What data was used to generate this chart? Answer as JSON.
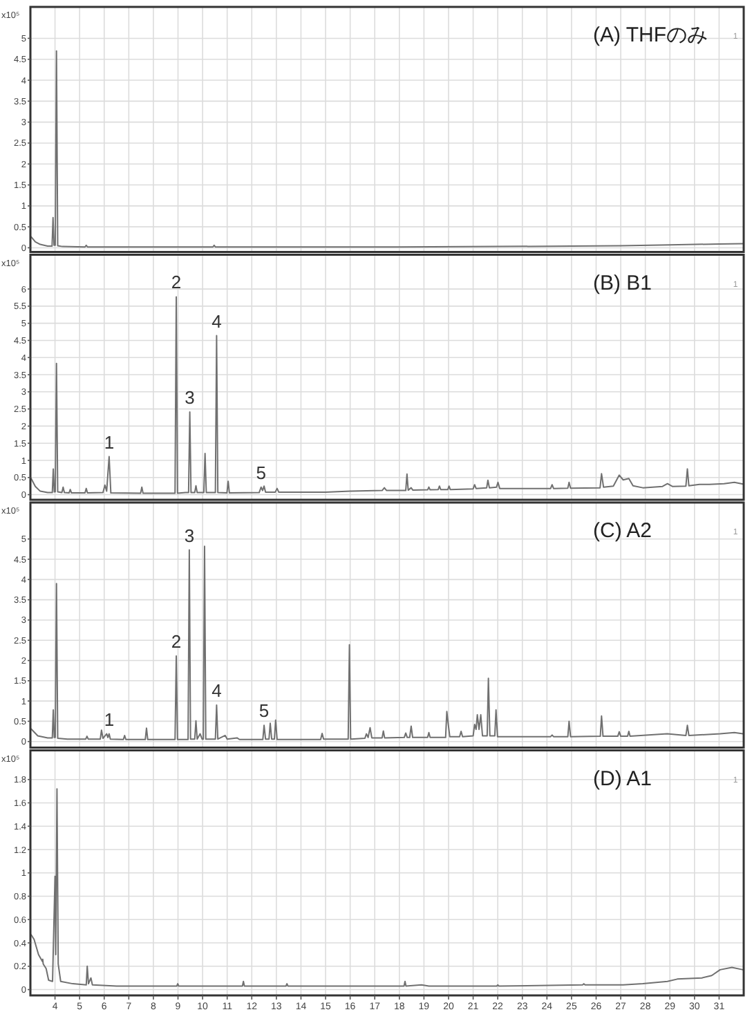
{
  "chart_data": [
    {
      "type": "line",
      "title": "(A) THFのみ",
      "ylabel": "x10⁵",
      "xlim": [
        3,
        32
      ],
      "ylim": [
        -0.1,
        5.75
      ],
      "xticks": [
        4,
        5,
        6,
        7,
        8,
        9,
        10,
        11,
        12,
        13,
        14,
        15,
        16,
        17,
        18,
        19,
        20,
        21,
        22,
        23,
        24,
        25,
        26,
        27,
        28,
        29,
        30,
        31
      ],
      "yticks": [
        0,
        0.5,
        1,
        1.5,
        2,
        2.5,
        3,
        3.5,
        4,
        4.5,
        5
      ],
      "grid": true,
      "tick_labels": "y",
      "annotations": [
        "1"
      ],
      "series": [
        {
          "color": "#707070",
          "x": [
            3.03,
            3.2,
            3.4,
            3.7,
            3.88,
            3.92,
            3.96,
            4.01,
            4.06,
            4.11,
            4.3,
            5.22,
            5.27,
            5.32,
            8,
            10.42,
            10.47,
            10.52,
            14,
            18,
            22,
            25,
            27,
            29,
            31,
            31.97
          ],
          "values": [
            0.26,
            0.14,
            0.08,
            0.04,
            0.04,
            0.72,
            0.06,
            0.06,
            4.7,
            0.05,
            0.03,
            0.02,
            0.06,
            0.02,
            0.02,
            0.02,
            0.06,
            0.02,
            0.02,
            0.02,
            0.03,
            0.04,
            0.05,
            0.07,
            0.09,
            0.1
          ]
        }
      ]
    },
    {
      "type": "line",
      "title": "(B) B1",
      "ylabel": "x10⁵",
      "xlim": [
        3,
        32
      ],
      "ylim": [
        -0.15,
        7
      ],
      "xticks": [
        4,
        5,
        6,
        7,
        8,
        9,
        10,
        11,
        12,
        13,
        14,
        15,
        16,
        17,
        18,
        19,
        20,
        21,
        22,
        23,
        24,
        25,
        26,
        27,
        28,
        29,
        30,
        31
      ],
      "yticks": [
        0,
        0.5,
        1,
        1.5,
        2,
        2.5,
        3,
        3.5,
        4,
        4.5,
        5,
        5.5,
        6
      ],
      "grid": true,
      "tick_labels": "y",
      "annotations": [
        {
          "text": "1",
          "x": 6.2,
          "y": 1.11
        },
        {
          "text": "2",
          "x": 8.93,
          "y": 5.77
        },
        {
          "text": "3",
          "x": 9.48,
          "y": 2.41
        },
        {
          "text": "4",
          "x": 10.57,
          "y": 4.64
        },
        {
          "text": "5",
          "x": 12.38,
          "y": 0.22
        },
        "1"
      ],
      "series": [
        {
          "color": "#707070",
          "x": [
            3.03,
            3.2,
            3.4,
            3.7,
            3.89,
            3.93,
            3.97,
            4.01,
            4.06,
            4.11,
            4.28,
            4.33,
            4.38,
            4.57,
            4.62,
            4.67,
            5.22,
            5.27,
            5.32,
            5.95,
            6.03,
            6.1,
            6.2,
            6.27,
            7.48,
            7.53,
            7.58,
            8.88,
            8.93,
            8.98,
            9.3,
            9.43,
            9.48,
            9.53,
            9.68,
            9.73,
            9.78,
            10.05,
            10.1,
            10.15,
            10.52,
            10.57,
            10.62,
            10.99,
            11.04,
            11.09,
            12.3,
            12.38,
            12.44,
            12.5,
            12.56,
            12.95,
            13.03,
            13.1,
            15,
            16,
            17.3,
            17.39,
            17.48,
            18.26,
            18.31,
            18.36,
            18.48,
            18.55,
            19.15,
            19.2,
            19.25,
            19.58,
            19.63,
            19.68,
            19.97,
            20.02,
            20.07,
            21,
            21.06,
            21.12,
            21.55,
            21.6,
            21.66,
            21.95,
            22.01,
            22.08,
            24.15,
            24.21,
            24.27,
            24.85,
            24.9,
            24.96,
            26.16,
            26.22,
            26.3,
            26.7,
            26.94,
            27.1,
            27.33,
            27.5,
            27.9,
            28.7,
            28.9,
            29.1,
            29.65,
            29.71,
            29.77,
            30.2,
            30.6,
            31.2,
            31.62,
            31.97
          ],
          "values": [
            0.47,
            0.24,
            0.1,
            0.06,
            0.06,
            0.75,
            0.08,
            0.08,
            3.83,
            0.08,
            0.06,
            0.22,
            0.06,
            0.05,
            0.15,
            0.05,
            0.05,
            0.18,
            0.05,
            0.06,
            0.28,
            0.1,
            1.11,
            0.05,
            0.04,
            0.22,
            0.04,
            0.04,
            5.77,
            0.04,
            0.06,
            0.06,
            2.41,
            0.06,
            0.06,
            0.26,
            0.06,
            0.06,
            1.2,
            0.06,
            0.06,
            4.64,
            0.06,
            0.05,
            0.39,
            0.05,
            0.06,
            0.22,
            0.12,
            0.25,
            0.07,
            0.07,
            0.18,
            0.07,
            0.07,
            0.1,
            0.12,
            0.2,
            0.12,
            0.12,
            0.6,
            0.13,
            0.2,
            0.13,
            0.14,
            0.22,
            0.14,
            0.15,
            0.25,
            0.15,
            0.15,
            0.25,
            0.15,
            0.17,
            0.29,
            0.18,
            0.2,
            0.42,
            0.2,
            0.22,
            0.36,
            0.18,
            0.18,
            0.29,
            0.18,
            0.19,
            0.36,
            0.19,
            0.2,
            0.61,
            0.22,
            0.25,
            0.57,
            0.43,
            0.47,
            0.26,
            0.2,
            0.24,
            0.32,
            0.24,
            0.25,
            0.75,
            0.26,
            0.3,
            0.3,
            0.32,
            0.36,
            0.31
          ]
        }
      ]
    },
    {
      "type": "line",
      "title": "(C) A2",
      "ylabel": "x10⁵",
      "xlim": [
        3,
        32
      ],
      "ylim": [
        -0.15,
        5.9
      ],
      "xticks": [
        4,
        5,
        6,
        7,
        8,
        9,
        10,
        11,
        12,
        13,
        14,
        15,
        16,
        17,
        18,
        19,
        20,
        21,
        22,
        23,
        24,
        25,
        26,
        27,
        28,
        29,
        30,
        31
      ],
      "yticks": [
        0,
        0.5,
        1,
        1.5,
        2,
        2.5,
        3,
        3.5,
        4,
        4.5,
        5
      ],
      "grid": true,
      "tick_labels": "y",
      "annotations": [
        {
          "text": "1",
          "x": 6.2,
          "y": 0.19
        },
        {
          "text": "2",
          "x": 8.93,
          "y": 2.11
        },
        {
          "text": "3",
          "x": 9.46,
          "y": 4.73
        },
        {
          "text": "4",
          "x": 10.57,
          "y": 0.9
        },
        {
          "text": "5",
          "x": 12.5,
          "y": 0.4
        },
        "1"
      ],
      "series": [
        {
          "color": "#707070",
          "x": [
            3.03,
            3.3,
            3.7,
            3.89,
            3.93,
            3.97,
            4.01,
            4.06,
            4.11,
            4.5,
            5.25,
            5.3,
            5.35,
            5.84,
            5.89,
            5.95,
            6.1,
            6.15,
            6.2,
            6.25,
            6.78,
            6.83,
            6.88,
            7.67,
            7.72,
            7.77,
            8.88,
            8.93,
            8.98,
            9.41,
            9.46,
            9.51,
            9.68,
            9.73,
            9.78,
            9.9,
            9.98,
            10.03,
            10.08,
            10.13,
            10.52,
            10.57,
            10.62,
            10.92,
            11.0,
            11.4,
            11.5,
            12.45,
            12.5,
            12.56,
            12.7,
            12.75,
            12.81,
            12.92,
            12.97,
            13.03,
            14.8,
            14.86,
            14.92,
            15.92,
            15.97,
            16.02,
            16.6,
            16.66,
            16.73,
            16.81,
            16.88,
            17.3,
            17.35,
            17.4,
            18.2,
            18.26,
            18.32,
            18.42,
            18.48,
            18.54,
            19.15,
            19.2,
            19.25,
            19.88,
            19.93,
            19.99,
            20.05,
            20.45,
            20.51,
            20.57,
            21.0,
            21.06,
            21.12,
            21.17,
            21.24,
            21.31,
            21.38,
            21.57,
            21.62,
            21.68,
            21.88,
            21.93,
            21.99,
            24.15,
            24.21,
            24.27,
            24.85,
            24.9,
            24.96,
            26.17,
            26.22,
            26.28,
            26.88,
            26.94,
            27.0,
            27.28,
            27.33,
            27.38,
            28.89,
            29.65,
            29.71,
            29.77,
            31.04,
            31.62,
            31.97
          ],
          "values": [
            0.31,
            0.14,
            0.09,
            0.09,
            0.78,
            0.1,
            0.1,
            3.9,
            0.08,
            0.06,
            0.06,
            0.13,
            0.06,
            0.06,
            0.28,
            0.08,
            0.19,
            0.1,
            0.19,
            0.06,
            0.05,
            0.15,
            0.05,
            0.05,
            0.33,
            0.05,
            0.05,
            2.11,
            0.05,
            0.05,
            4.73,
            0.06,
            0.06,
            0.51,
            0.06,
            0.19,
            0.06,
            0.06,
            4.82,
            0.06,
            0.06,
            0.9,
            0.06,
            0.15,
            0.06,
            0.09,
            0.05,
            0.05,
            0.4,
            0.06,
            0.06,
            0.45,
            0.06,
            0.06,
            0.53,
            0.05,
            0.05,
            0.2,
            0.06,
            0.06,
            2.39,
            0.06,
            0.08,
            0.19,
            0.1,
            0.34,
            0.09,
            0.09,
            0.26,
            0.09,
            0.1,
            0.21,
            0.1,
            0.1,
            0.38,
            0.1,
            0.1,
            0.22,
            0.1,
            0.1,
            0.74,
            0.42,
            0.12,
            0.12,
            0.25,
            0.12,
            0.14,
            0.42,
            0.3,
            0.66,
            0.3,
            0.66,
            0.14,
            0.14,
            1.56,
            0.14,
            0.14,
            0.78,
            0.12,
            0.12,
            0.16,
            0.12,
            0.12,
            0.5,
            0.12,
            0.13,
            0.63,
            0.13,
            0.13,
            0.24,
            0.13,
            0.13,
            0.25,
            0.13,
            0.19,
            0.15,
            0.4,
            0.15,
            0.19,
            0.22,
            0.19
          ]
        }
      ]
    },
    {
      "type": "line",
      "title": "(D) A1",
      "ylabel": "x10⁵",
      "xlim": [
        3,
        32
      ],
      "ylim": [
        -0.05,
        2.05
      ],
      "xticks": [
        4,
        5,
        6,
        7,
        8,
        9,
        10,
        11,
        12,
        13,
        14,
        15,
        16,
        17,
        18,
        19,
        20,
        21,
        22,
        23,
        24,
        25,
        26,
        27,
        28,
        29,
        30,
        31
      ],
      "yticks": [
        0,
        0.2,
        0.4,
        0.6,
        0.8,
        1,
        1.2,
        1.4,
        1.6,
        1.8
      ],
      "grid": true,
      "annotations": [
        "1"
      ],
      "series": [
        {
          "color": "#707070",
          "x": [
            3.03,
            3.15,
            3.33,
            3.49,
            3.5,
            3.52,
            3.64,
            3.74,
            3.9,
            4.0,
            4.03,
            4.08,
            4.13,
            4.23,
            4.72,
            5.27,
            5.31,
            5.36,
            5.46,
            5.52,
            6.5,
            8.95,
            8.99,
            9.03,
            11.62,
            11.66,
            11.7,
            13.39,
            13.43,
            13.47,
            18.19,
            18.23,
            18.27,
            18.9,
            19.2,
            21.96,
            22.0,
            22.05,
            25.45,
            25.5,
            25.55,
            27.1,
            27.9,
            28.9,
            29.3,
            30.3,
            30.7,
            31.04,
            31.52,
            31.97
          ],
          "values": [
            0.47,
            0.43,
            0.3,
            0.24,
            0.26,
            0.22,
            0.18,
            0.08,
            0.07,
            0.97,
            0.3,
            1.72,
            0.22,
            0.07,
            0.05,
            0.04,
            0.2,
            0.05,
            0.1,
            0.04,
            0.03,
            0.03,
            0.05,
            0.03,
            0.03,
            0.07,
            0.03,
            0.03,
            0.05,
            0.03,
            0.03,
            0.07,
            0.03,
            0.04,
            0.03,
            0.03,
            0.04,
            0.03,
            0.04,
            0.05,
            0.04,
            0.04,
            0.05,
            0.07,
            0.09,
            0.1,
            0.12,
            0.17,
            0.19,
            0.17
          ]
        }
      ]
    }
  ]
}
